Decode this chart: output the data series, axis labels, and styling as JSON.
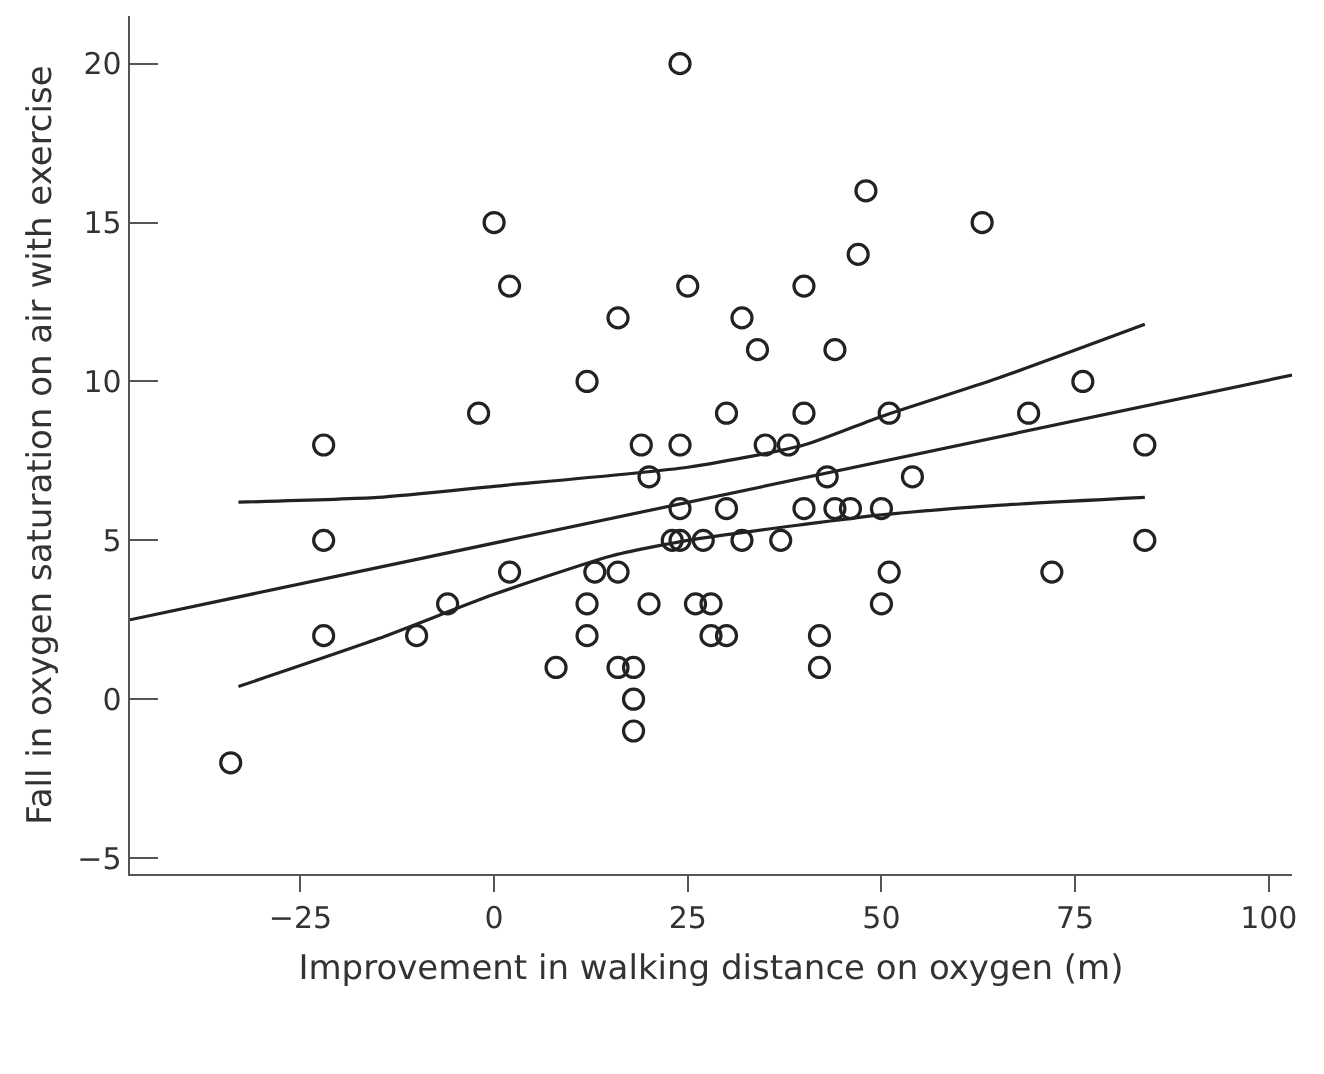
{
  "chart_data": {
    "type": "scatter",
    "xlabel": "Improvement in walking distance on oxygen (m)",
    "ylabel": "Fall in oxygen saturation on air with exercise",
    "xlim": [
      -47,
      103
    ],
    "ylim": [
      -5.5,
      21.5
    ],
    "xticks": [
      -25,
      0,
      25,
      50,
      75,
      100
    ],
    "yticks": [
      -5,
      0,
      5,
      10,
      15,
      20
    ],
    "series": [
      {
        "type": "scatter",
        "marker": "circle",
        "color": "#222222",
        "x": [
          -34,
          -22,
          -22,
          -22,
          -10,
          -6,
          -2,
          0,
          2,
          2,
          8,
          12,
          12,
          12,
          13,
          16,
          16,
          16,
          18,
          18,
          18,
          19,
          20,
          20,
          23,
          24,
          24,
          24,
          24,
          25,
          26,
          27,
          28,
          28,
          30,
          30,
          30,
          32,
          32,
          34,
          35,
          37,
          38,
          40,
          40,
          40,
          42,
          42,
          43,
          44,
          44,
          46,
          47,
          48,
          50,
          50,
          51,
          51,
          54,
          63,
          69,
          72,
          76,
          84,
          84
        ],
        "values": [
          -2,
          8,
          5,
          2,
          2,
          3,
          9,
          15,
          13,
          4,
          1,
          10,
          3,
          2,
          4,
          12,
          4,
          1,
          0,
          -1,
          1,
          8,
          7,
          3,
          5,
          8,
          6,
          5,
          20,
          13,
          3,
          5,
          3,
          2,
          9,
          6,
          2,
          12,
          5,
          11,
          8,
          5,
          8,
          13,
          9,
          6,
          2,
          1,
          7,
          11,
          6,
          6,
          14,
          16,
          6,
          3,
          9,
          4,
          7,
          15,
          9,
          4,
          10,
          8,
          5
        ]
      },
      {
        "type": "line",
        "color": "#222222",
        "x": [
          -47,
          103
        ],
        "values": [
          2.5,
          10.2
        ]
      },
      {
        "type": "line",
        "color": "#222222",
        "x": [
          -33,
          -15,
          0,
          25,
          40,
          50,
          65,
          84
        ],
        "values": [
          6.2,
          6.35,
          6.7,
          7.3,
          8.0,
          8.9,
          10.1,
          11.8
        ]
      },
      {
        "type": "line",
        "color": "#222222",
        "x": [
          -33,
          -15,
          0,
          15,
          25,
          40,
          50,
          65,
          84
        ],
        "values": [
          0.4,
          1.9,
          3.3,
          4.5,
          5.0,
          5.5,
          5.8,
          6.1,
          6.35
        ]
      }
    ]
  }
}
